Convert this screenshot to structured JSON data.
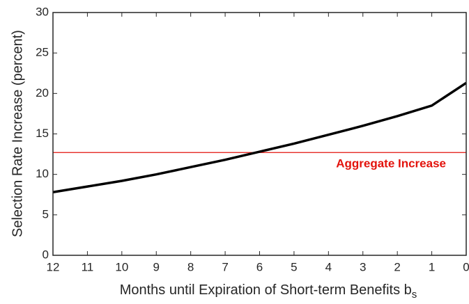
{
  "chart_data": {
    "type": "line",
    "xlabel": "Months until Expiration of Short-term Benefits b",
    "xlabel_subscript": "s",
    "ylabel": "Selection Rate Increase (percent)",
    "x": [
      12,
      11,
      10,
      9,
      8,
      7,
      6,
      5,
      4,
      3,
      2,
      1,
      0
    ],
    "series": [
      {
        "color": "#000000",
        "values": [
          7.8,
          8.5,
          9.2,
          10.0,
          10.9,
          11.8,
          12.8,
          13.8,
          14.9,
          16.0,
          17.2,
          18.5,
          21.3
        ]
      }
    ],
    "reference_line": {
      "value": 12.7,
      "label": "Aggregate Increase",
      "color": "#e3120b"
    },
    "xlim": [
      12,
      0
    ],
    "xticks": [
      12,
      11,
      10,
      9,
      8,
      7,
      6,
      5,
      4,
      3,
      2,
      1,
      0
    ],
    "ylim": [
      0,
      30
    ],
    "yticks": [
      0,
      5,
      10,
      15,
      20,
      25,
      30
    ]
  }
}
